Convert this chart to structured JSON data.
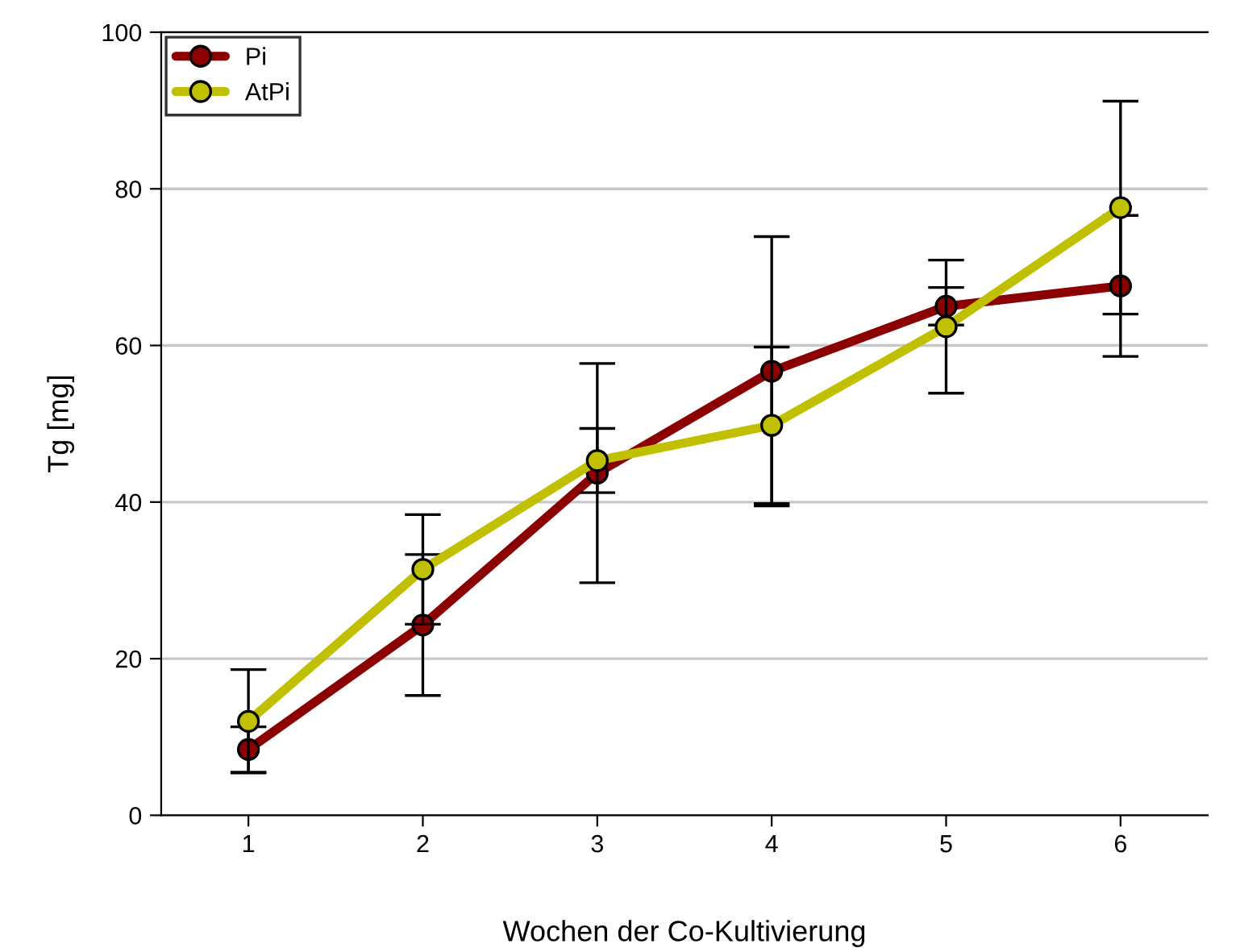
{
  "chart_data": {
    "type": "line",
    "xlabel": "Wochen der Co-Kultivierung",
    "ylabel": "Tg [mg]",
    "x": [
      1,
      2,
      3,
      4,
      5,
      6
    ],
    "xlim": [
      0.5,
      6.5
    ],
    "xticks": [
      1,
      2,
      3,
      4,
      5,
      6
    ],
    "ylim": [
      0,
      100
    ],
    "yticks": [
      0,
      20,
      40,
      60,
      80,
      100
    ],
    "grid": "y",
    "legend": "top left",
    "marker": "circle",
    "line_style": "solid",
    "series": [
      {
        "name": "Pi",
        "color": "#8b0000",
        "values": [
          8.4,
          24.3,
          43.7,
          56.7,
          65.0,
          67.6
        ],
        "errors": [
          2.9,
          9.0,
          14.0,
          17.2,
          2.4,
          9.0
        ]
      },
      {
        "name": "AtPi",
        "color": "#c0c000",
        "values": [
          12.0,
          31.4,
          45.3,
          49.8,
          62.4,
          77.6
        ],
        "errors": [
          6.6,
          7.0,
          4.1,
          10.0,
          8.5,
          13.6
        ]
      }
    ]
  }
}
